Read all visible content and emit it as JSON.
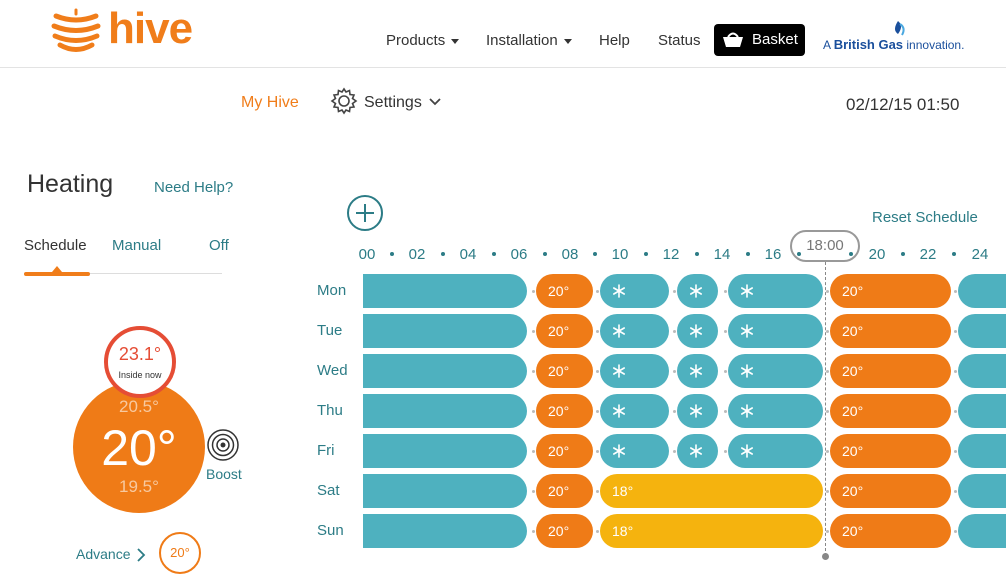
{
  "brand": {
    "name": "hive"
  },
  "nav": {
    "products": "Products",
    "installation": "Installation",
    "help": "Help",
    "status": "Status",
    "basket": "Basket"
  },
  "partner": {
    "prefix": "A",
    "name": "British Gas",
    "suffix": "innovation."
  },
  "subnav": {
    "my_hive": "My Hive",
    "settings": "Settings",
    "datetime": "02/12/15 01:50"
  },
  "heating": {
    "title": "Heating",
    "need_help": "Need Help?",
    "tabs": [
      "Schedule",
      "Manual",
      "Off"
    ],
    "active_tab": "Schedule",
    "inside_temp": "23.1°",
    "inside_label": "Inside now",
    "target_up": "20.5°",
    "target": "20°",
    "target_down": "19.5°",
    "boost": "Boost",
    "advance": "Advance",
    "advance_temp": "20°"
  },
  "schedule": {
    "reset": "Reset Schedule",
    "hours": [
      "00",
      "02",
      "04",
      "06",
      "08",
      "10",
      "12",
      "14",
      "16",
      "18:00",
      "20",
      "22",
      "24"
    ],
    "current_time": "18:00",
    "days": [
      {
        "day": "Mon",
        "segments": [
          {
            "type": "frost",
            "label": ""
          },
          {
            "type": "heat",
            "label": "20°"
          },
          {
            "type": "frost",
            "label": "❄"
          },
          {
            "type": "frost",
            "label": "❄"
          },
          {
            "type": "frost",
            "label": "❄"
          },
          {
            "type": "heat",
            "label": "20°"
          },
          {
            "type": "frost",
            "label": ""
          }
        ]
      },
      {
        "day": "Tue",
        "segments": [
          {
            "type": "frost",
            "label": ""
          },
          {
            "type": "heat",
            "label": "20°"
          },
          {
            "type": "frost",
            "label": "❄"
          },
          {
            "type": "frost",
            "label": "❄"
          },
          {
            "type": "frost",
            "label": "❄"
          },
          {
            "type": "heat",
            "label": "20°"
          },
          {
            "type": "frost",
            "label": ""
          }
        ]
      },
      {
        "day": "Wed",
        "segments": [
          {
            "type": "frost",
            "label": ""
          },
          {
            "type": "heat",
            "label": "20°"
          },
          {
            "type": "frost",
            "label": "❄"
          },
          {
            "type": "frost",
            "label": "❄"
          },
          {
            "type": "frost",
            "label": "❄"
          },
          {
            "type": "heat",
            "label": "20°"
          },
          {
            "type": "frost",
            "label": ""
          }
        ]
      },
      {
        "day": "Thu",
        "segments": [
          {
            "type": "frost",
            "label": ""
          },
          {
            "type": "heat",
            "label": "20°"
          },
          {
            "type": "frost",
            "label": "❄"
          },
          {
            "type": "frost",
            "label": "❄"
          },
          {
            "type": "frost",
            "label": "❄"
          },
          {
            "type": "heat",
            "label": "20°"
          },
          {
            "type": "frost",
            "label": ""
          }
        ]
      },
      {
        "day": "Fri",
        "segments": [
          {
            "type": "frost",
            "label": ""
          },
          {
            "type": "heat",
            "label": "20°"
          },
          {
            "type": "frost",
            "label": "❄"
          },
          {
            "type": "frost",
            "label": "❄"
          },
          {
            "type": "frost",
            "label": "❄"
          },
          {
            "type": "heat",
            "label": "20°"
          },
          {
            "type": "frost",
            "label": ""
          }
        ]
      },
      {
        "day": "Sat",
        "segments": [
          {
            "type": "frost",
            "label": ""
          },
          {
            "type": "heat",
            "label": "20°"
          },
          {
            "type": "comfort",
            "label": "18°"
          },
          {
            "type": "heat",
            "label": "20°"
          },
          {
            "type": "frost",
            "label": ""
          }
        ]
      },
      {
        "day": "Sun",
        "segments": [
          {
            "type": "frost",
            "label": ""
          },
          {
            "type": "heat",
            "label": "20°"
          },
          {
            "type": "comfort",
            "label": "18°"
          },
          {
            "type": "heat",
            "label": "20°"
          },
          {
            "type": "frost",
            "label": ""
          }
        ]
      }
    ]
  },
  "colors": {
    "brand_orange": "#ef7b17",
    "frost_teal": "#4eb1bf",
    "comfort_yellow": "#f5b30e",
    "inside_red": "#e54d35",
    "link_teal": "#2c7c86"
  },
  "icons": [
    "hive-logo-icon",
    "caret-down-icon",
    "basket-icon",
    "british-gas-flame-icon",
    "gear-icon",
    "chevron-down-icon",
    "boost-icon",
    "chevron-right-icon",
    "add-icon",
    "snowflake-icon"
  ]
}
